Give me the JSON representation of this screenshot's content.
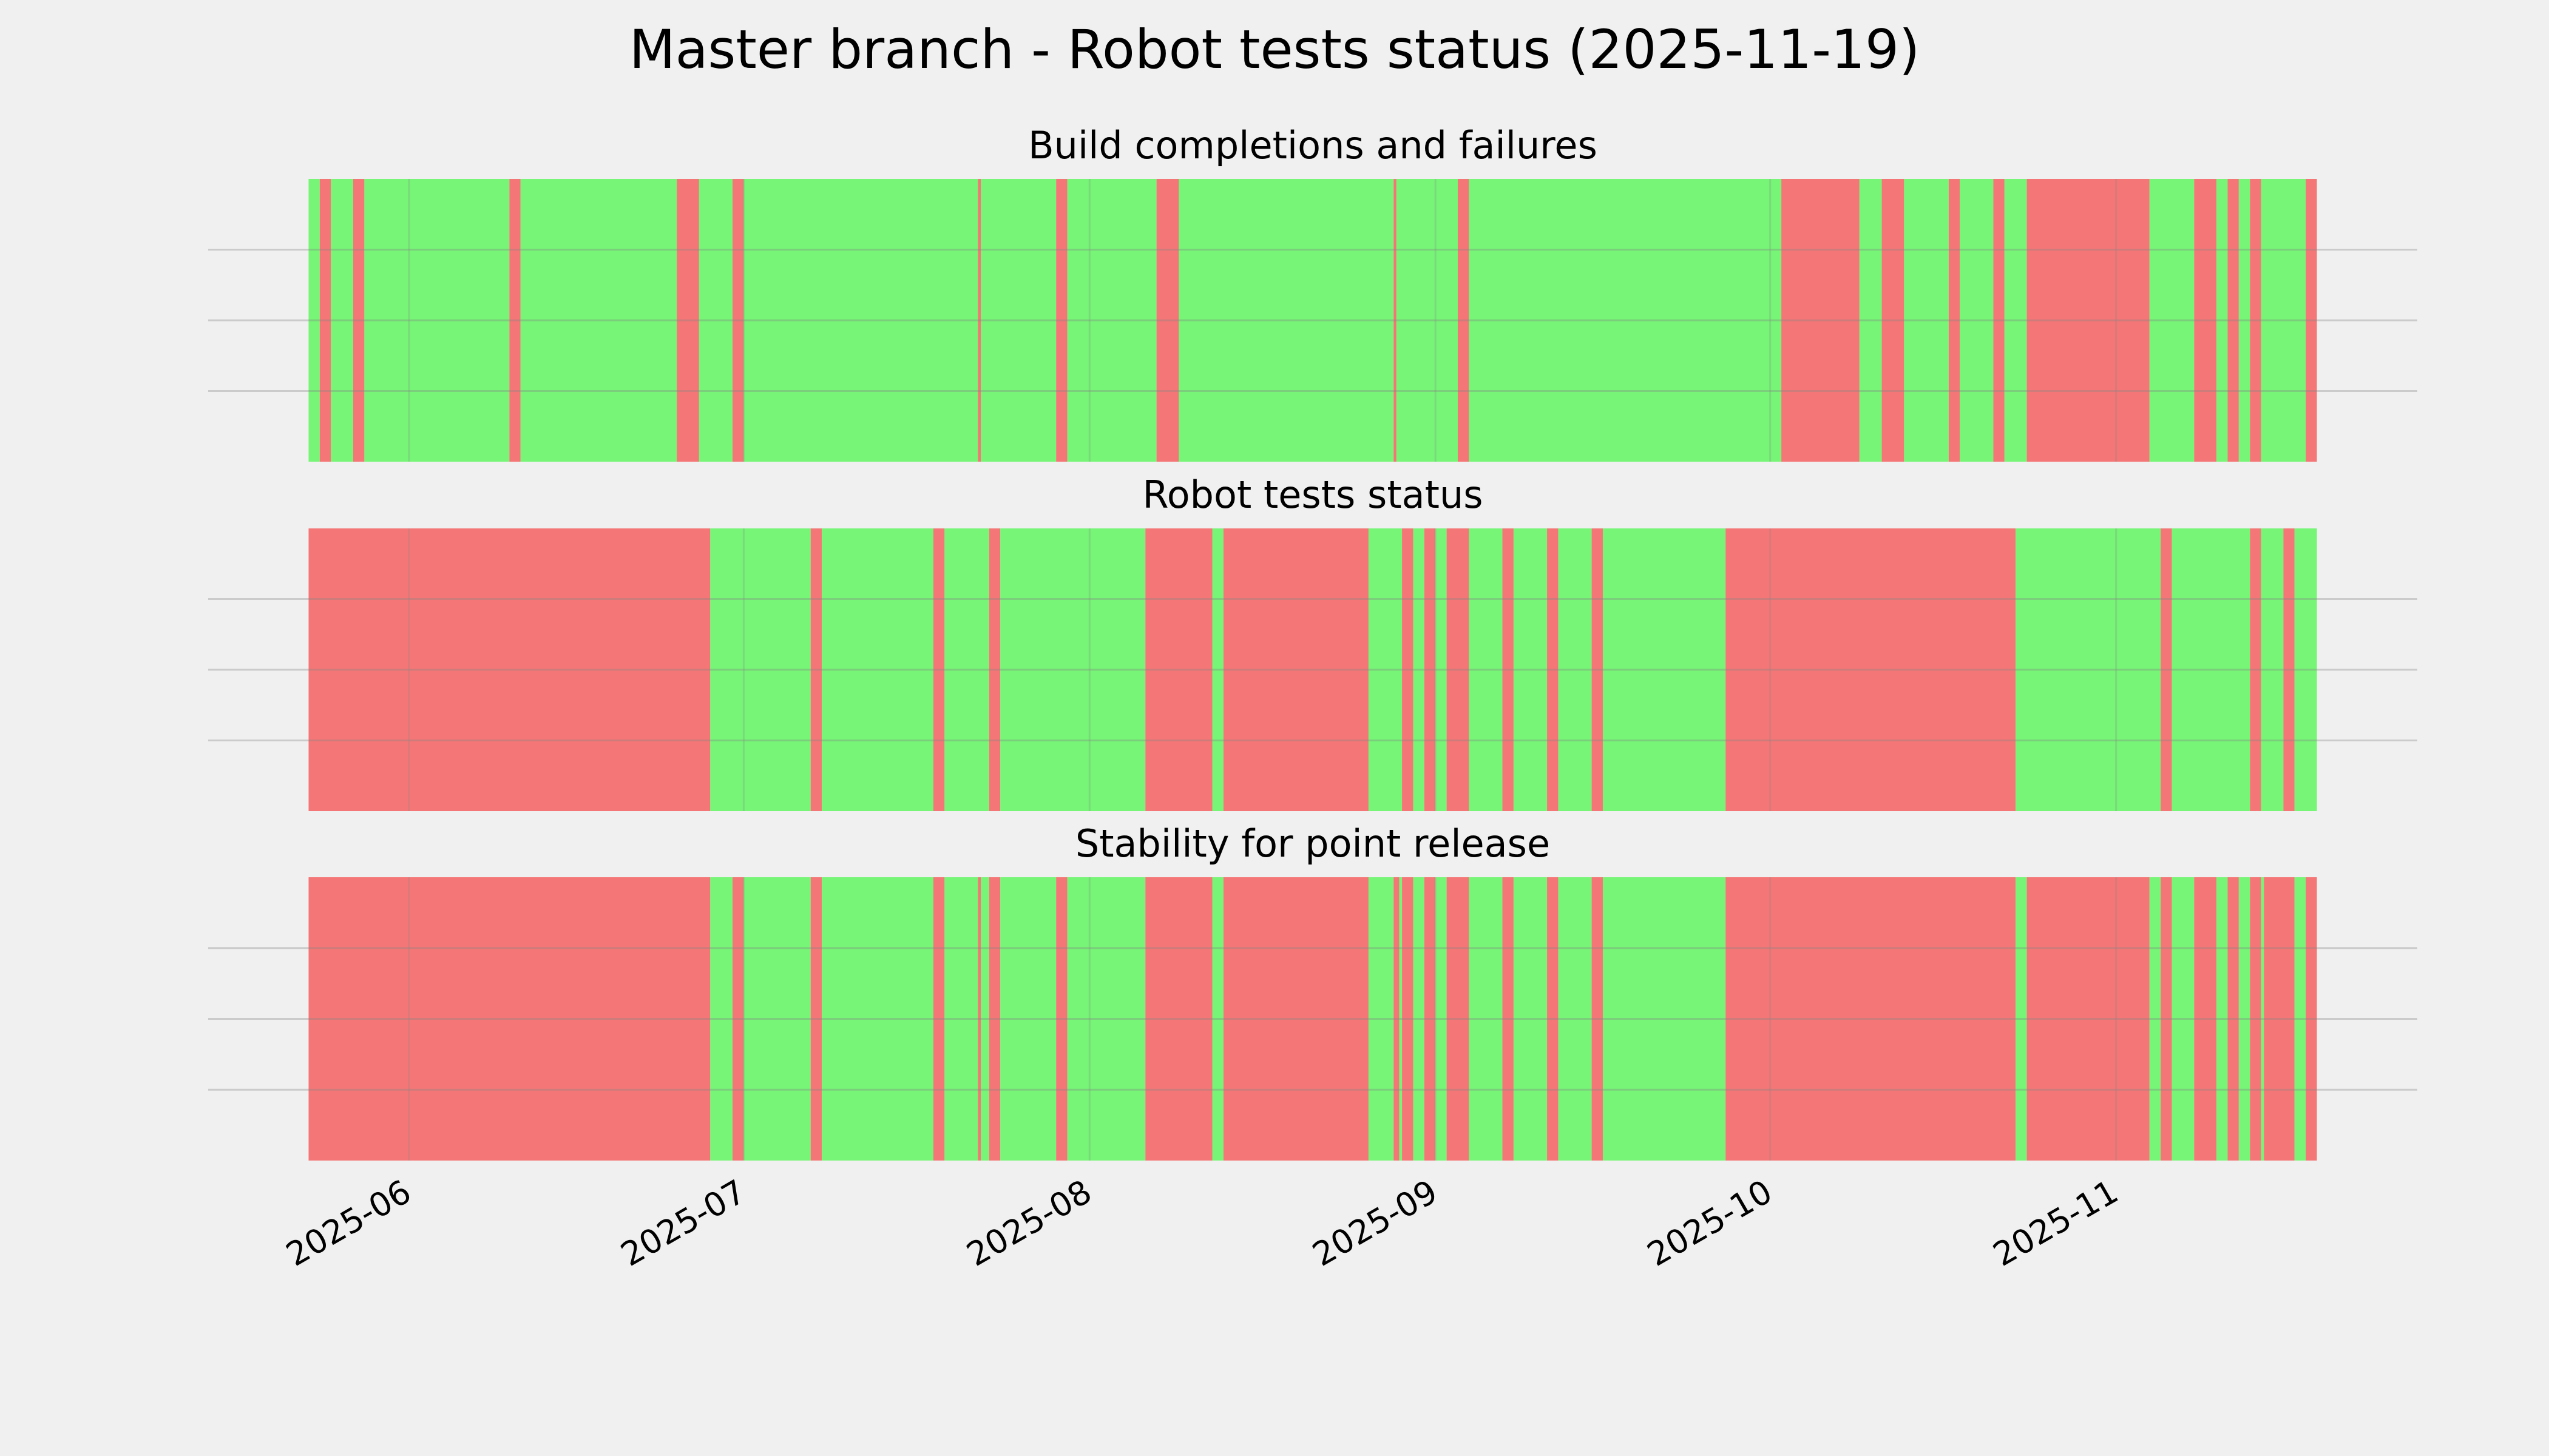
{
  "title": "Master branch - Robot tests status (2025-11-19)",
  "chart_data": [
    {
      "type": "timeline",
      "title": "Build completions and failures",
      "x": [
        "2025-05-23",
        "2025-05-24",
        "2025-05-25",
        "2025-05-27",
        "2025-05-28",
        "2025-06-10",
        "2025-06-11",
        "2025-06-25",
        "2025-06-27",
        "2025-06-30",
        "2025-07-01",
        "2025-07-22",
        "2025-07-22T06:00",
        "2025-07-29",
        "2025-07-30",
        "2025-08-07",
        "2025-08-09",
        "2025-08-28T06:00",
        "2025-08-28T12:00",
        "2025-09-03",
        "2025-09-04",
        "2025-10-02",
        "2025-10-09",
        "2025-10-11",
        "2025-10-13",
        "2025-10-17",
        "2025-10-18",
        "2025-10-21",
        "2025-10-22",
        "2025-10-24",
        "2025-11-04",
        "2025-11-08",
        "2025-11-10",
        "2025-11-11",
        "2025-11-12",
        "2025-11-13",
        "2025-11-14",
        "2025-11-18",
        "2025-11-19"
      ],
      "colors": [
        "#76f576",
        "#f57676",
        "#76f576",
        "#f57676",
        "#76f576",
        "#f57676",
        "#76f576",
        "#f57676",
        "#76f576",
        "#f57676",
        "#76f576",
        "#f57676",
        "#76f576",
        "#f57676",
        "#76f576",
        "#f57676",
        "#76f576",
        "#f57676",
        "#76f576",
        "#f57676",
        "#76f576",
        "#f57676",
        "#76f576",
        "#f57676",
        "#76f576",
        "#f57676",
        "#76f576",
        "#f57676",
        "#76f576",
        "#f57676",
        "#76f576",
        "#f57676",
        "#76f576",
        "#f57676",
        "#76f576",
        "#f57676",
        "#76f576",
        "#f57676"
      ],
      "xlim": [
        "2025-05-14",
        "2025-11-28"
      ],
      "xticks": [
        "2025-06",
        "2025-07",
        "2025-08",
        "2025-09",
        "2025-10",
        "2025-11"
      ],
      "ylim": [
        0,
        1
      ],
      "yticks": [
        0.25,
        0.5,
        0.75
      ],
      "grid": true
    },
    {
      "type": "timeline",
      "title": "Robot tests status",
      "x": [
        "2025-05-23",
        "2025-06-28",
        "2025-07-07",
        "2025-07-08",
        "2025-07-18",
        "2025-07-19",
        "2025-07-23",
        "2025-07-24",
        "2025-08-06",
        "2025-08-12",
        "2025-08-13",
        "2025-08-26",
        "2025-08-29",
        "2025-08-30",
        "2025-08-31",
        "2025-09-01",
        "2025-09-02",
        "2025-09-04",
        "2025-09-07",
        "2025-09-08",
        "2025-09-11",
        "2025-09-12",
        "2025-09-15",
        "2025-09-16",
        "2025-09-27",
        "2025-10-23",
        "2025-11-05",
        "2025-11-06",
        "2025-11-13",
        "2025-11-14",
        "2025-11-16",
        "2025-11-17",
        "2025-11-19"
      ],
      "colors": [
        "#f57676",
        "#76f576",
        "#f57676",
        "#76f576",
        "#f57676",
        "#76f576",
        "#f57676",
        "#76f576",
        "#f57676",
        "#76f576",
        "#f57676",
        "#76f576",
        "#f57676",
        "#76f576",
        "#f57676",
        "#76f576",
        "#f57676",
        "#76f576",
        "#f57676",
        "#76f576",
        "#f57676",
        "#76f576",
        "#f57676",
        "#76f576",
        "#f57676",
        "#76f576",
        "#f57676",
        "#76f576",
        "#f57676",
        "#76f576",
        "#f57676",
        "#76f576"
      ],
      "xlim": [
        "2025-05-14",
        "2025-11-28"
      ],
      "xticks": [
        "2025-06",
        "2025-07",
        "2025-08",
        "2025-09",
        "2025-10",
        "2025-11"
      ],
      "ylim": [
        0,
        1
      ],
      "yticks": [
        0.25,
        0.5,
        0.75
      ],
      "grid": true
    },
    {
      "type": "timeline",
      "title": "Stability for point release",
      "x": [
        "2025-05-23",
        "2025-06-28",
        "2025-06-30",
        "2025-07-01",
        "2025-07-07",
        "2025-07-08",
        "2025-07-18",
        "2025-07-19",
        "2025-07-22",
        "2025-07-22T06:00",
        "2025-07-23",
        "2025-07-24",
        "2025-07-29",
        "2025-07-30",
        "2025-08-06",
        "2025-08-12",
        "2025-08-13",
        "2025-08-26",
        "2025-08-28T06:00",
        "2025-08-28T18:00",
        "2025-08-29",
        "2025-08-30",
        "2025-08-31",
        "2025-09-01",
        "2025-09-02",
        "2025-09-04",
        "2025-09-07",
        "2025-09-08",
        "2025-09-11",
        "2025-09-12",
        "2025-09-15",
        "2025-09-16",
        "2025-09-27",
        "2025-10-23",
        "2025-10-24",
        "2025-11-04",
        "2025-11-05",
        "2025-11-06",
        "2025-11-08",
        "2025-11-10",
        "2025-11-11",
        "2025-11-12",
        "2025-11-13",
        "2025-11-14",
        "2025-11-14T06:00",
        "2025-11-17",
        "2025-11-18",
        "2025-11-19"
      ],
      "colors": [
        "#f57676",
        "#76f576",
        "#f57676",
        "#76f576",
        "#f57676",
        "#76f576",
        "#f57676",
        "#76f576",
        "#f57676",
        "#76f576",
        "#f57676",
        "#76f576",
        "#f57676",
        "#76f576",
        "#f57676",
        "#76f576",
        "#f57676",
        "#76f576",
        "#f57676",
        "#76f576",
        "#f57676",
        "#76f576",
        "#f57676",
        "#76f576",
        "#f57676",
        "#76f576",
        "#f57676",
        "#76f576",
        "#f57676",
        "#76f576",
        "#f57676",
        "#76f576",
        "#f57676",
        "#76f576",
        "#f57676",
        "#76f576",
        "#f57676",
        "#76f576",
        "#f57676",
        "#76f576",
        "#f57676",
        "#76f576",
        "#f57676",
        "#76f576",
        "#f57676",
        "#76f576",
        "#f57676"
      ],
      "xlim": [
        "2025-05-14",
        "2025-11-28"
      ],
      "xticks": [
        "2025-06",
        "2025-07",
        "2025-08",
        "2025-09",
        "2025-10",
        "2025-11"
      ],
      "ylim": [
        0,
        1
      ],
      "yticks": [
        0.25,
        0.5,
        0.75
      ],
      "grid": true
    }
  ]
}
